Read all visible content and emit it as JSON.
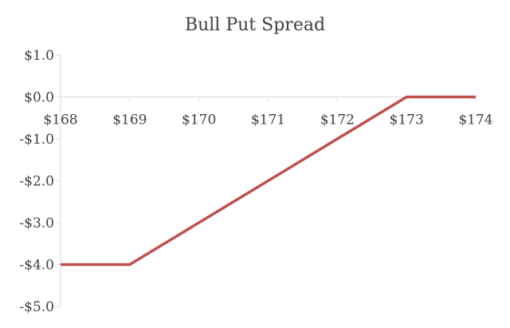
{
  "chart_data": {
    "type": "line",
    "title": "Bull Put Spread",
    "xlabel": "",
    "ylabel": "",
    "x_tick_labels": [
      "$168",
      "$169",
      "$170",
      "$171",
      "$172",
      "$173",
      "$174"
    ],
    "x_ticks": [
      168,
      169,
      170,
      171,
      172,
      173,
      174
    ],
    "y_tick_labels": [
      "$1.0",
      "$0.0",
      "-$1.0",
      "-$2.0",
      "-$3.0",
      "-$4.0",
      "-$5.0"
    ],
    "y_ticks": [
      1,
      0,
      -1,
      -2,
      -3,
      -4,
      -5
    ],
    "xlim": [
      168,
      174
    ],
    "ylim": [
      -5,
      1
    ],
    "grid": false,
    "series": [
      {
        "x": [
          168,
          169,
          173,
          174
        ],
        "y": [
          -4,
          -4,
          0,
          0
        ],
        "color": "#c0504d"
      }
    ]
  }
}
